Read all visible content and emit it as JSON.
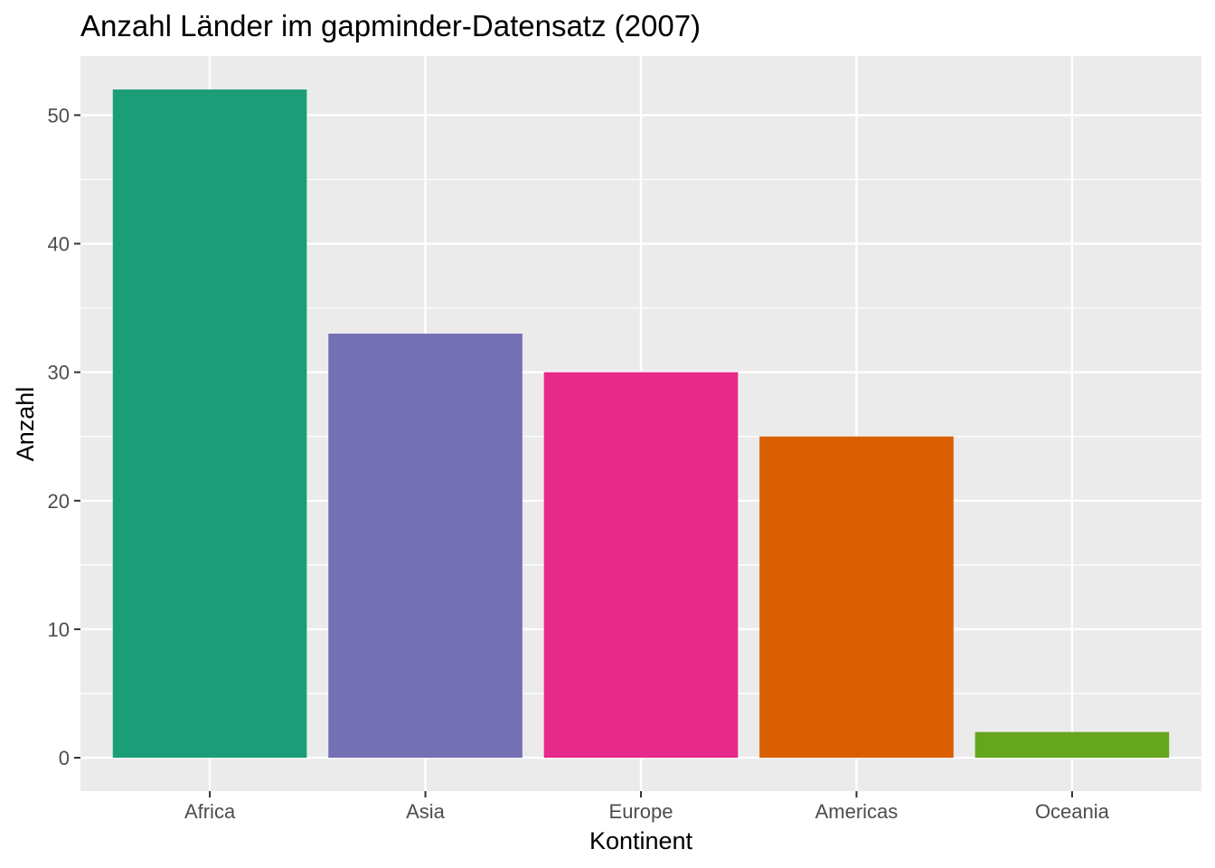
{
  "chart_data": {
    "type": "bar",
    "title": "Anzahl Länder im gapminder-Datensatz (2007)",
    "xlabel": "Kontinent",
    "ylabel": "Anzahl",
    "categories": [
      "Africa",
      "Asia",
      "Europe",
      "Americas",
      "Oceania"
    ],
    "values": [
      52,
      33,
      30,
      25,
      2
    ],
    "colors": [
      "#1b9e77",
      "#7570b3",
      "#e7298a",
      "#d95f02",
      "#66a61e"
    ],
    "yticks": [
      0,
      10,
      20,
      30,
      40,
      50
    ],
    "ylim": [
      -2.6,
      54.6
    ],
    "grid": true,
    "legend": "none",
    "panel_background": "#ebebeb"
  }
}
